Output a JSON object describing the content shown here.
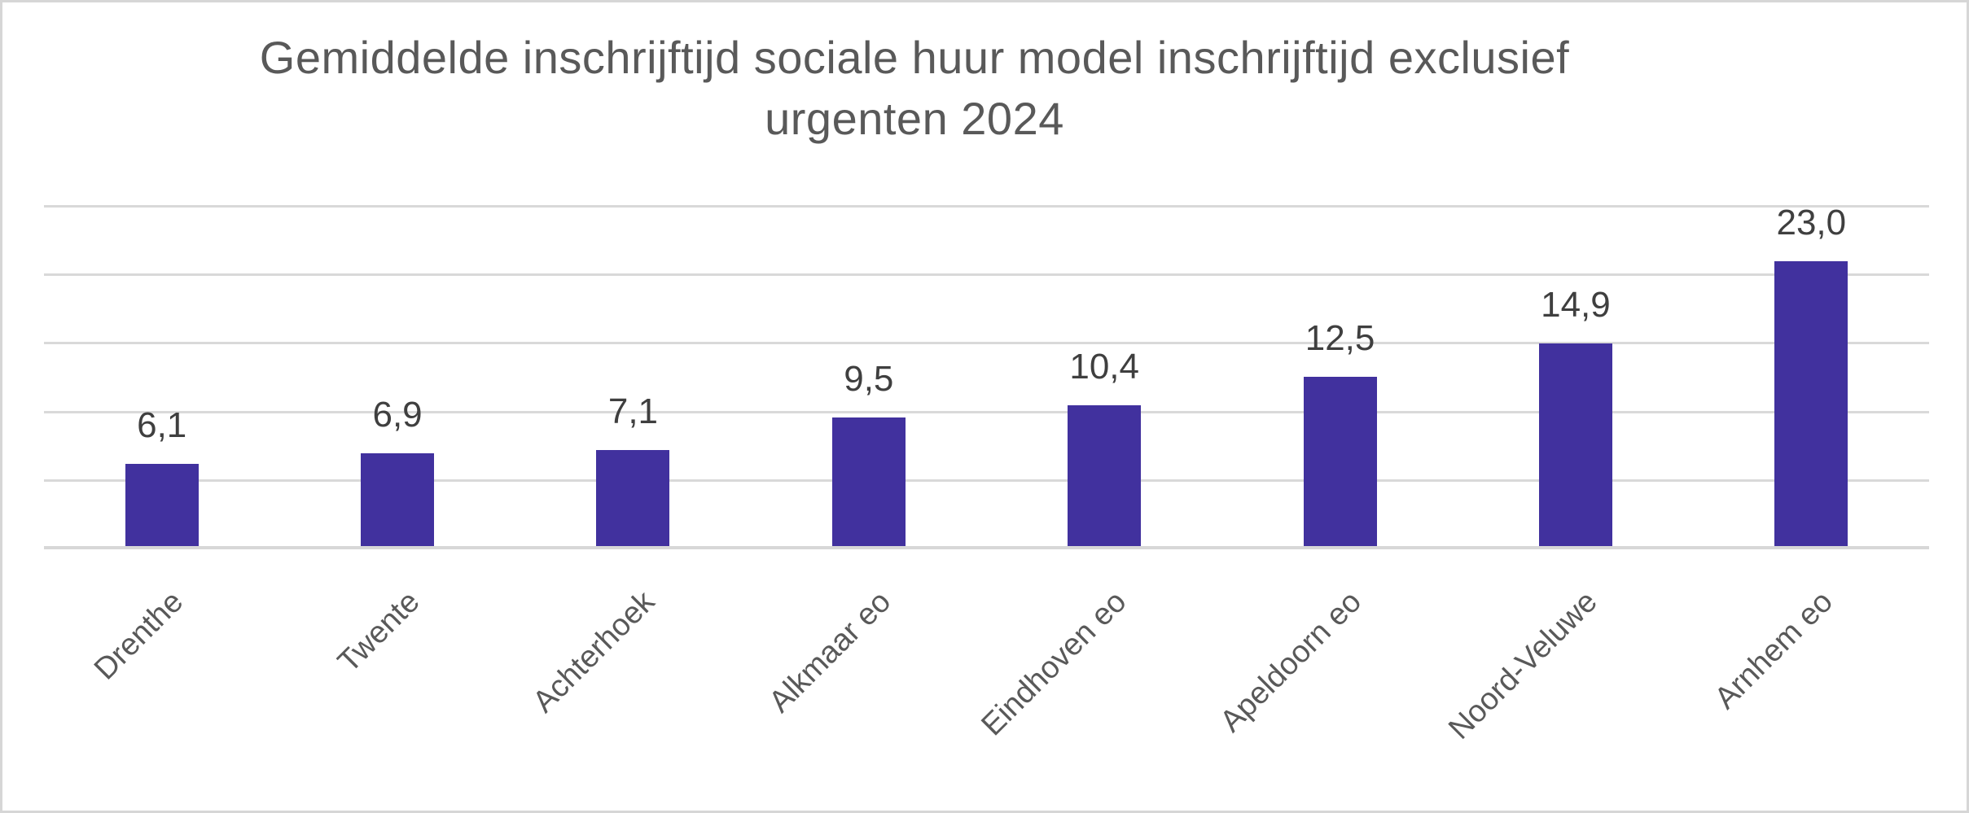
{
  "title": {
    "line1": "Gemiddelde inschrijftijd sociale huur model inschrijftijd exclusief",
    "line2": "urgenten 2024"
  },
  "chart_data": {
    "type": "bar",
    "title": "Gemiddelde inschrijftijd sociale huur model inschrijftijd exclusief urgenten 2024",
    "categories": [
      "Drenthe",
      "Twente",
      "Achterhoek",
      "Alkmaar eo",
      "Eindhoven eo",
      "Apeldoorn eo",
      "Noord-Veluwe",
      "Arnhem eo"
    ],
    "values": [
      6.1,
      6.9,
      7.1,
      9.5,
      10.4,
      12.5,
      14.9,
      23.0
    ],
    "value_labels": [
      "6,1",
      "6,9",
      "7,1",
      "9,5",
      "10,4",
      "12,5",
      "14,9",
      "23,0"
    ],
    "xlabel": "",
    "ylabel": "",
    "ylim": [
      0,
      25
    ],
    "gridline_step": 5,
    "grid": true,
    "legend": false,
    "y_tick_labels_visible": false,
    "decimal_separator": ","
  },
  "colors": {
    "bar": "#41319E",
    "gridline": "#D9D9D9",
    "axis_line": "#D7D7D7",
    "canvas_border": "#D6D6D6",
    "title_text": "#595959",
    "value_label_text": "#3F3F3F",
    "category_label_text": "#595959",
    "background": "#FFFFFF"
  }
}
